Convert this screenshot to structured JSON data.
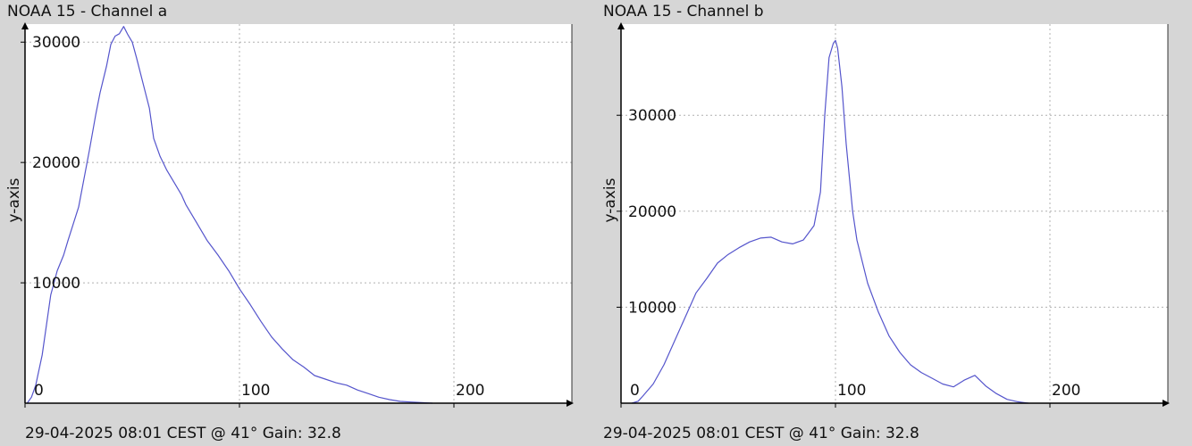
{
  "charts": [
    {
      "title": "NOAA 15 - Channel a",
      "footer": "29-04-2025 08:01 CEST @ 41° Gain: 32.8"
    },
    {
      "title": "NOAA 15 - Channel b",
      "footer": "29-04-2025 08:01 CEST @ 41° Gain: 32.8"
    }
  ],
  "chart_data": [
    {
      "type": "line",
      "title": "NOAA 15 - Channel a",
      "xlabel": "",
      "ylabel": "y-axis",
      "xlim": [
        0,
        255
      ],
      "ylim": [
        0,
        31500
      ],
      "xticks": [
        0,
        100,
        200
      ],
      "yticks": [
        10000,
        20000,
        30000
      ],
      "grid": true,
      "line_color": "#5555cc",
      "series": [
        {
          "x": [
            1,
            3,
            5,
            8,
            10,
            12,
            15,
            18,
            20,
            25,
            30,
            33,
            35,
            38,
            40,
            42,
            44,
            46,
            48,
            50,
            52,
            55,
            58,
            60,
            63,
            66,
            70,
            73,
            75,
            80,
            85,
            90,
            95,
            100,
            105,
            110,
            115,
            120,
            125,
            130,
            135,
            140,
            145,
            150,
            155,
            160,
            165,
            170,
            175,
            180,
            185,
            190
          ],
          "y": [
            0,
            500,
            1500,
            4000,
            6500,
            9000,
            11000,
            12300,
            13500,
            16300,
            21000,
            24000,
            25800,
            28000,
            29800,
            30500,
            30700,
            31300,
            30600,
            30000,
            28700,
            26600,
            24500,
            22000,
            20500,
            19400,
            18200,
            17300,
            16500,
            15000,
            13500,
            12300,
            11000,
            9500,
            8200,
            6800,
            5500,
            4500,
            3600,
            3000,
            2300,
            2000,
            1700,
            1500,
            1100,
            800,
            500,
            300,
            150,
            100,
            50,
            0
          ]
        }
      ]
    },
    {
      "type": "line",
      "title": "NOAA 15 - Channel b",
      "xlabel": "",
      "ylabel": "y-axis",
      "xlim": [
        0,
        255
      ],
      "ylim": [
        0,
        39500
      ],
      "xticks": [
        0,
        100,
        200
      ],
      "yticks": [
        10000,
        20000,
        30000
      ],
      "grid": true,
      "line_color": "#5555cc",
      "series": [
        {
          "x": [
            5,
            8,
            10,
            15,
            20,
            25,
            30,
            35,
            40,
            45,
            50,
            55,
            60,
            65,
            70,
            75,
            80,
            85,
            90,
            93,
            95,
            97,
            99,
            100,
            101,
            103,
            105,
            108,
            110,
            115,
            120,
            125,
            130,
            135,
            140,
            145,
            150,
            155,
            160,
            165,
            170,
            175,
            180,
            185,
            190
          ],
          "y": [
            0,
            200,
            700,
            2000,
            4000,
            6500,
            9000,
            11500,
            13000,
            14600,
            15500,
            16200,
            16800,
            17200,
            17300,
            16800,
            16600,
            17000,
            18500,
            22000,
            30000,
            36000,
            37500,
            37800,
            37000,
            33000,
            27000,
            20000,
            17000,
            12500,
            9500,
            7000,
            5300,
            4000,
            3200,
            2600,
            2000,
            1700,
            2400,
            2900,
            1800,
            1000,
            400,
            150,
            0
          ]
        }
      ]
    }
  ]
}
